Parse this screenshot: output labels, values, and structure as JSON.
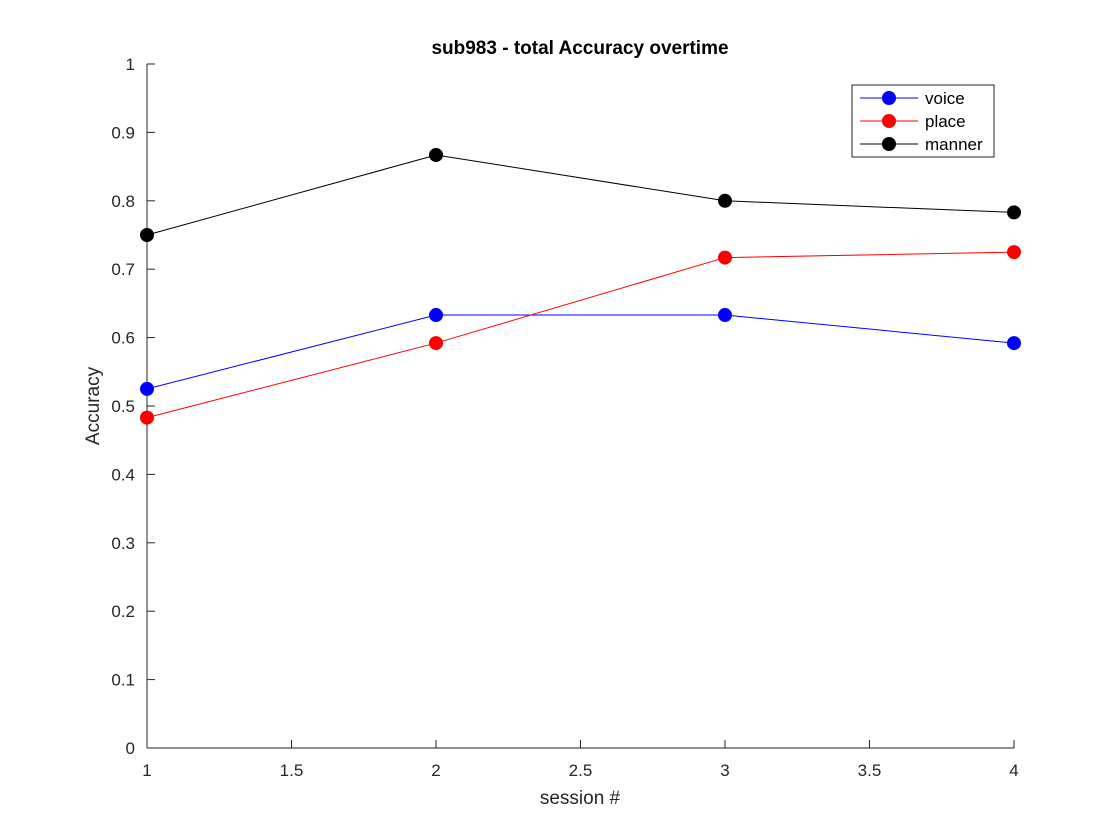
{
  "chart_data": {
    "type": "line",
    "title": "sub983 - total Accuracy overtime",
    "xlabel": "session #",
    "ylabel": "Accuracy",
    "xlim": [
      1,
      4
    ],
    "ylim": [
      0,
      1
    ],
    "x_ticks": [
      "1",
      "1.5",
      "2",
      "2.5",
      "3",
      "3.5",
      "4"
    ],
    "y_ticks": [
      "0",
      "0.1",
      "0.2",
      "0.3",
      "0.4",
      "0.5",
      "0.6",
      "0.7",
      "0.8",
      "0.9",
      "1"
    ],
    "grid": false,
    "legend_position": "top-right",
    "x": [
      1,
      2,
      3,
      4
    ],
    "series": [
      {
        "name": "voice",
        "color": "#0000ff",
        "values": [
          0.525,
          0.633,
          0.633,
          0.592
        ]
      },
      {
        "name": "place",
        "color": "#ff0000",
        "values": [
          0.483,
          0.592,
          0.717,
          0.725
        ]
      },
      {
        "name": "manner",
        "color": "#000000",
        "values": [
          0.75,
          0.867,
          0.8,
          0.783
        ]
      }
    ]
  }
}
